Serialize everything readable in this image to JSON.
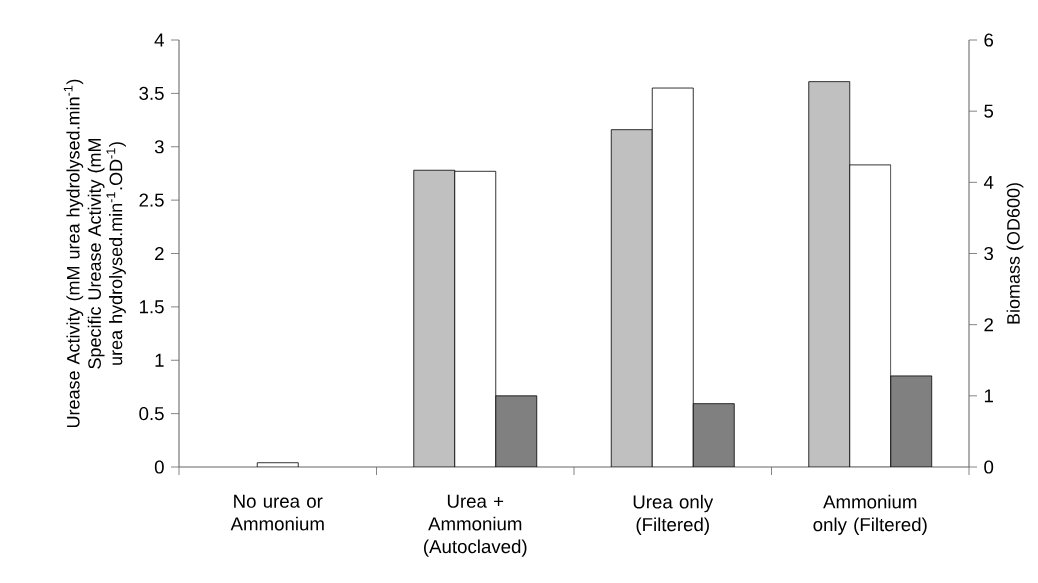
{
  "chart_data": {
    "type": "bar",
    "categories": [
      "No urea or Ammonium",
      "Urea + Ammonium (Autoclaved)",
      "Urea only (Filtered)",
      "Ammonium only (Filtered)"
    ],
    "series": [
      {
        "color": "#c0c0c0",
        "values": [
          null,
          2.78,
          3.16,
          3.61
        ]
      },
      {
        "color": "#ffffff",
        "values": [
          0.04,
          2.77,
          3.55,
          2.83
        ]
      },
      {
        "color": "#808080",
        "axis": "y2",
        "values": [
          null,
          1.0,
          0.89,
          1.28
        ]
      }
    ],
    "ylabel": "Urease Activity (mM urea hydrolysed.min$^{-1}$) Specific Urease Activity (mM urea hydrolysed.min$^{-1}$.OD$^{-1}$)",
    "y2label": "Biomass (OD600)",
    "ylim": [
      0,
      4
    ],
    "yticks": [
      0,
      0.5,
      1,
      1.5,
      2,
      2.5,
      3,
      3.5,
      4
    ],
    "y2lim": [
      0,
      6
    ],
    "y2ticks": [
      0,
      1,
      2,
      3,
      4,
      5,
      6
    ],
    "grid": false
  }
}
